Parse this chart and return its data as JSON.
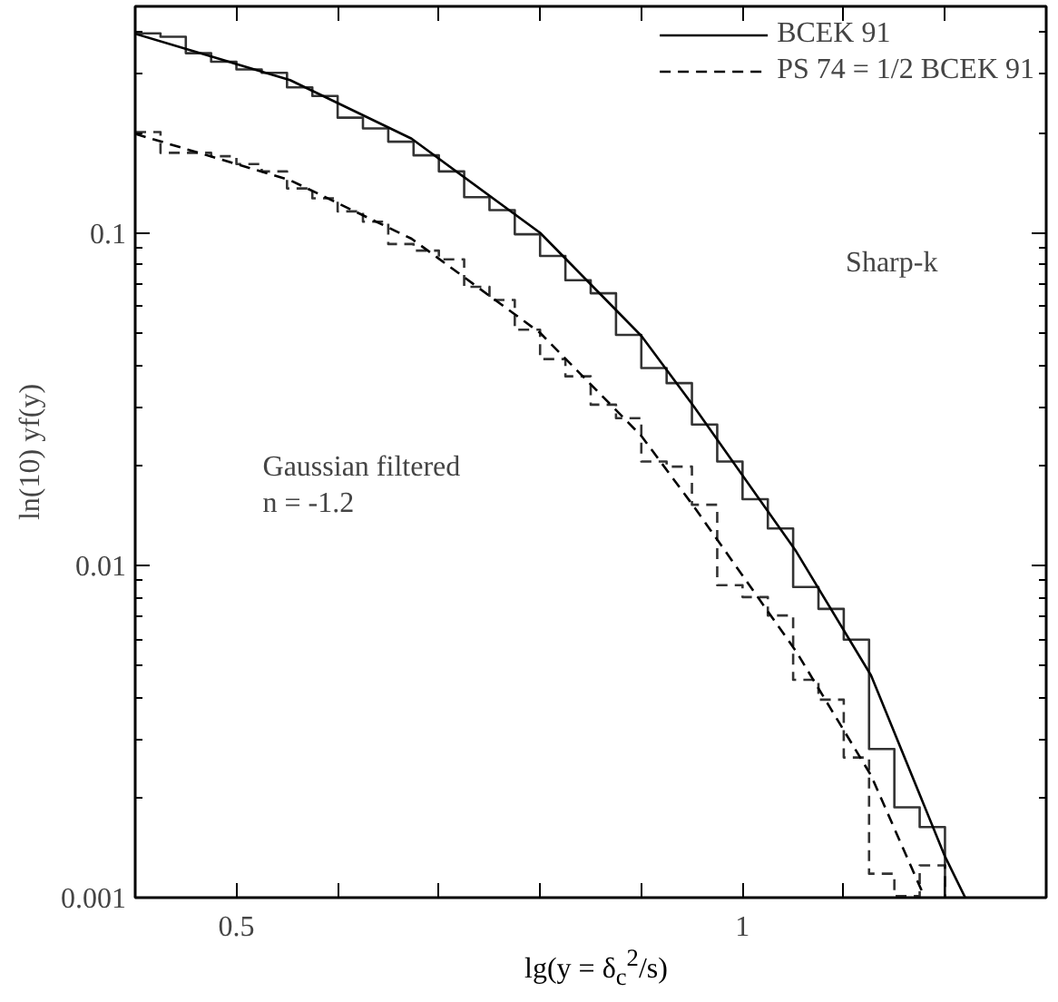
{
  "chart_data": {
    "type": "line",
    "xlabel": "lg(y = δ$_{c}$$^{2}$/s)",
    "ylabel": "ln(10) yf(y)",
    "log": "y",
    "xlim": [
      0.4,
      1.3
    ],
    "xticks": [
      0.5,
      {
        "value": 0.6,
        "label": null
      },
      {
        "value": 0.7,
        "label": null
      },
      {
        "value": 0.8,
        "label": null
      },
      {
        "value": 0.9,
        "label": null
      },
      1,
      {
        "value": 1.1,
        "label": null
      },
      {
        "value": 1.2,
        "label": null
      }
    ],
    "ylim": [
      0.001,
      0.48
    ],
    "yticks": [
      0.001,
      0.01,
      0.1
    ],
    "grid": false,
    "legend": "top right",
    "marker": "none",
    "annotations": [
      "Sharp-k",
      "Gaussian filtered\nn = -1.2"
    ],
    "series": [
      {
        "name": "BCEK 91",
        "line_style": "solid",
        "color": "#000000",
        "x": [
          0.4,
          0.553,
          0.673,
          0.8,
          0.9,
          0.952,
          1.053,
          1.127,
          1.2,
          1.22
        ],
        "values": [
          0.397,
          0.288,
          0.192,
          0.1,
          0.049,
          0.03,
          0.011,
          0.00466,
          0.00133,
          0.001
        ]
      },
      {
        "name": "PS 74 = 1/2 BCEK 91",
        "line_style": "dashed",
        "color": "#000000",
        "x": [
          0.4,
          0.553,
          0.673,
          0.8,
          0.9,
          0.952,
          1.053,
          1.127,
          1.18
        ],
        "values": [
          0.1985,
          0.144,
          0.096,
          0.05,
          0.0245,
          0.015,
          0.0055,
          0.00233,
          0.001
        ]
      },
      {
        "type": "step",
        "line_style": "solid",
        "color": "#000000",
        "x": [
          0.4,
          0.425,
          0.45,
          0.475,
          0.5,
          0.525,
          0.55,
          0.575,
          0.6,
          0.625,
          0.65,
          0.675,
          0.7,
          0.725,
          0.75,
          0.775,
          0.8,
          0.825,
          0.85,
          0.875,
          0.9,
          0.925,
          0.95,
          0.975,
          1.0,
          1.025,
          1.05,
          1.075,
          1.1,
          1.125,
          1.15,
          1.175,
          1.2,
          1.2
        ],
        "values": [
          0.398,
          0.389,
          0.347,
          0.327,
          0.31,
          0.303,
          0.274,
          0.258,
          0.222,
          0.206,
          0.188,
          0.171,
          0.153,
          0.128,
          0.117,
          0.099,
          0.0852,
          0.072,
          0.0658,
          0.0493,
          0.0392,
          0.0353,
          0.0265,
          0.0205,
          0.0158,
          0.0129,
          0.0086,
          0.00739,
          0.00597,
          0.0028,
          0.00187,
          0.00163,
          0.00163,
          0.001
        ]
      },
      {
        "type": "step",
        "line_style": "dashed",
        "color": "#000000",
        "x": [
          0.4,
          0.425,
          0.45,
          0.475,
          0.5,
          0.525,
          0.55,
          0.575,
          0.6,
          0.625,
          0.65,
          0.675,
          0.7,
          0.725,
          0.75,
          0.775,
          0.8,
          0.825,
          0.85,
          0.875,
          0.9,
          0.925,
          0.95,
          0.975,
          1.0,
          1.025,
          1.05,
          1.075,
          1.1,
          1.125,
          1.15,
          1.175,
          1.2,
          1.2
        ],
        "values": [
          0.201,
          0.174,
          0.174,
          0.17,
          0.161,
          0.153,
          0.136,
          0.127,
          0.116,
          0.108,
          0.0925,
          0.0884,
          0.0832,
          0.0688,
          0.0628,
          0.0511,
          0.0417,
          0.037,
          0.0304,
          0.0277,
          0.0205,
          0.0198,
          0.0152,
          0.00871,
          0.00802,
          0.00706,
          0.00452,
          0.00394,
          0.00264,
          0.00118,
          0.00101,
          0.00125,
          0.00125,
          0.001
        ]
      }
    ]
  }
}
